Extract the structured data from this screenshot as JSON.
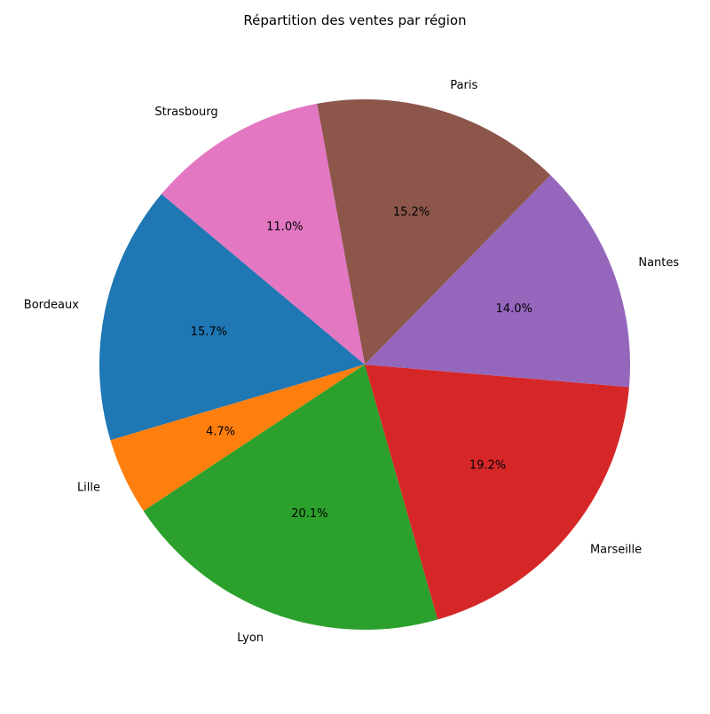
{
  "chart_data": {
    "type": "pie",
    "title": "Répartition des ventes par région",
    "categories": [
      "Bordeaux",
      "Lille",
      "Lyon",
      "Marseille",
      "Nantes",
      "Paris",
      "Strasbourg"
    ],
    "values": [
      15.7,
      4.7,
      20.1,
      19.2,
      14.0,
      15.2,
      11.0
    ],
    "value_labels": [
      "15.7%",
      "4.7%",
      "20.1%",
      "19.2%",
      "14.0%",
      "15.2%",
      "11.0%"
    ],
    "colors": [
      "#1f77b4",
      "#ff7f0e",
      "#2ca02c",
      "#d62728",
      "#9467bd",
      "#8c564b",
      "#e377c2"
    ],
    "start_angle_deg": 140,
    "direction": "counterclockwise",
    "legend": "none"
  }
}
